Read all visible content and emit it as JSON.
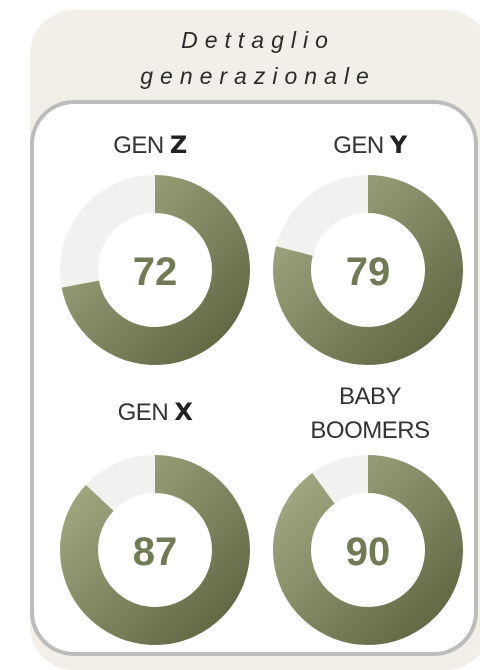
{
  "title": [
    "Dettaglio",
    "generazionale"
  ],
  "chart_data": [
    {
      "type": "donut",
      "title": "GEN",
      "title_emphasis": "Z",
      "values": [
        72
      ],
      "ylim": [
        0,
        100
      ],
      "color": "#7a8259",
      "track_color": "#f1f1ef"
    },
    {
      "type": "donut",
      "title": "GEN",
      "title_emphasis": "Y",
      "values": [
        79
      ],
      "ylim": [
        0,
        100
      ],
      "color": "#7a8259",
      "track_color": "#f1f1ef"
    },
    {
      "type": "donut",
      "title": "GEN",
      "title_emphasis": "X",
      "values": [
        87
      ],
      "ylim": [
        0,
        100
      ],
      "color": "#7a8259",
      "track_color": "#f1f1ef"
    },
    {
      "type": "donut",
      "title": "BABY BOOMERS",
      "values": [
        90
      ],
      "ylim": [
        0,
        100
      ],
      "color": "#7a8259",
      "track_color": "#f1f1ef"
    }
  ]
}
